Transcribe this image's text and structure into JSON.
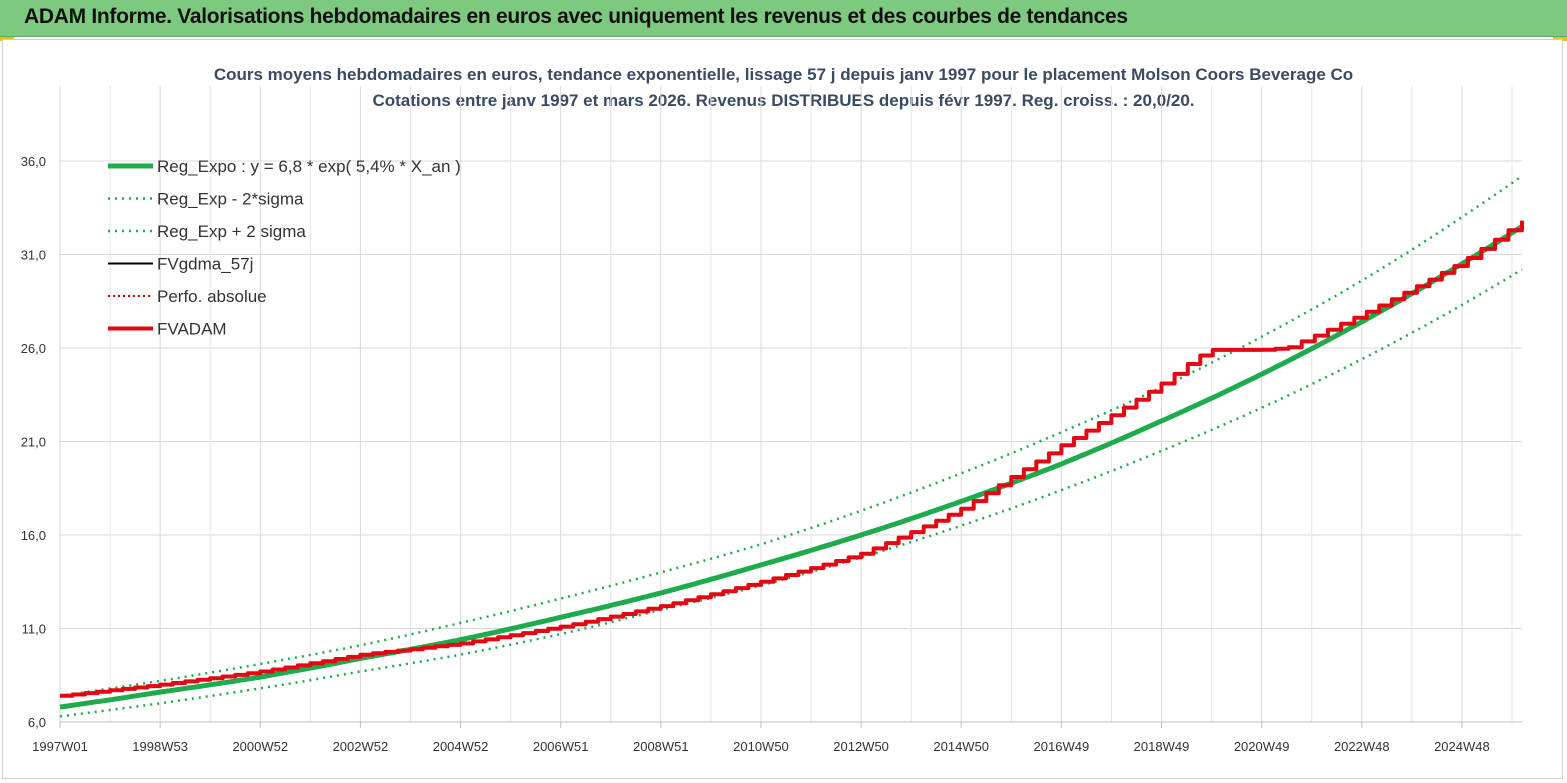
{
  "header": {
    "title": "ADAM Informe. Valorisations hebdomadaires en euros avec uniquement les revenus et des courbes de tendances"
  },
  "colors": {
    "header_bg": "#7dc97f",
    "reg_expo": "#1faa4b",
    "sigma": "#1faa4b",
    "fvgdma": "#000000",
    "perfo": "#cc0000",
    "fvadam": "#e30613"
  },
  "chart_data": {
    "type": "line",
    "title": "Cours moyens hebdomadaires en euros, tendance exponentielle, lissage 57 j depuis janv 1997  pour le placement Molson Coors Beverage Co",
    "subtitle": "Cotations entre janv 1997 et mars 2026. Revenus DISTRIBUES depuis févr 1997. Reg. croiss. : 20,0/20.",
    "ylim": [
      6.0,
      36.0
    ],
    "yticks": [
      "6,0",
      "11,0",
      "16,0",
      "21,0",
      "26,0",
      "31,0",
      "36,0"
    ],
    "yticks_values": [
      6,
      11,
      16,
      21,
      26,
      31,
      36
    ],
    "xlim": [
      1997.0,
      2026.2
    ],
    "xticks": [
      "1997W01",
      "1998W53",
      "2000W52",
      "2002W52",
      "2004W52",
      "2006W51",
      "2008W51",
      "2010W50",
      "2012W50",
      "2014W50",
      "2016W49",
      "2018W49",
      "2020W49",
      "2022W48",
      "2024W48"
    ],
    "xticks_values": [
      1997.0,
      1999.0,
      2001.0,
      2003.0,
      2005.0,
      2007.0,
      2009.0,
      2011.0,
      2013.0,
      2015.0,
      2017.0,
      2019.0,
      2021.0,
      2023.0,
      2025.0
    ],
    "grid": true,
    "legend_position": "top-left",
    "series": [
      {
        "name": "Reg_Expo : y = 6,8 * exp( 5,4% *  X_an )",
        "style": "solid-thick",
        "x": [
          1997.0,
          1999.0,
          2001.0,
          2003.0,
          2005.0,
          2007.0,
          2009.0,
          2011.0,
          2013.0,
          2015.0,
          2017.0,
          2019.0,
          2021.0,
          2023.0,
          2025.0,
          2026.2
        ],
        "values": [
          6.8,
          7.6,
          8.4,
          9.4,
          10.4,
          11.6,
          12.9,
          14.4,
          16.0,
          17.8,
          19.8,
          22.1,
          24.6,
          27.4,
          30.5,
          32.5
        ]
      },
      {
        "name": "Reg_Exp - 2*sigma",
        "style": "dotted",
        "x": [
          1997.0,
          1999.0,
          2001.0,
          2003.0,
          2005.0,
          2007.0,
          2009.0,
          2011.0,
          2013.0,
          2015.0,
          2017.0,
          2019.0,
          2021.0,
          2023.0,
          2025.0,
          2026.2
        ],
        "values": [
          6.3,
          7.0,
          7.8,
          8.7,
          9.6,
          10.7,
          12.0,
          13.3,
          14.8,
          16.5,
          18.4,
          20.5,
          22.8,
          25.4,
          28.3,
          30.2
        ]
      },
      {
        "name": "Reg_Exp + 2 sigma",
        "style": "dotted",
        "x": [
          1997.0,
          1999.0,
          2001.0,
          2003.0,
          2005.0,
          2007.0,
          2009.0,
          2011.0,
          2013.0,
          2015.0,
          2017.0,
          2019.0,
          2021.0,
          2023.0,
          2025.0,
          2026.2
        ],
        "values": [
          7.4,
          8.2,
          9.1,
          10.1,
          11.3,
          12.6,
          14.0,
          15.5,
          17.3,
          19.3,
          21.5,
          23.9,
          26.6,
          29.6,
          33.0,
          35.2
        ]
      },
      {
        "name": "FVgdma_57j",
        "style": "solid",
        "x": [
          1997.0,
          1999.0,
          2001.0,
          2003.0,
          2005.0,
          2007.0,
          2009.0,
          2011.0,
          2013.0,
          2015.0,
          2016.0,
          2017.0,
          2018.0,
          2019.0,
          2019.7,
          2020.0,
          2021.0,
          2021.5,
          2023.0,
          2025.0,
          2026.2
        ],
        "values": [
          7.4,
          8.0,
          8.7,
          9.6,
          10.2,
          11.1,
          12.2,
          13.5,
          15.0,
          17.4,
          19.1,
          20.8,
          22.4,
          24.1,
          25.5,
          25.9,
          25.9,
          26.0,
          27.8,
          30.6,
          32.8
        ]
      },
      {
        "name": "Perfo. absolue",
        "style": "dotted",
        "x": [
          1997.0,
          1999.0,
          2001.0,
          2003.0,
          2005.0,
          2007.0,
          2009.0,
          2011.0,
          2013.0,
          2015.0,
          2016.0,
          2017.0,
          2018.0,
          2019.0,
          2019.7,
          2020.0,
          2021.0,
          2021.5,
          2023.0,
          2025.0,
          2026.2
        ],
        "values": [
          7.4,
          8.0,
          8.7,
          9.6,
          10.2,
          11.1,
          12.2,
          13.5,
          15.0,
          17.4,
          19.1,
          20.8,
          22.4,
          24.1,
          25.5,
          25.9,
          25.9,
          26.0,
          27.8,
          30.6,
          32.8
        ]
      },
      {
        "name": "FVADAM",
        "style": "solid-thick",
        "x": [
          1997.0,
          1999.0,
          2001.0,
          2003.0,
          2005.0,
          2007.0,
          2009.0,
          2011.0,
          2013.0,
          2015.0,
          2016.0,
          2017.0,
          2018.0,
          2019.0,
          2019.7,
          2020.0,
          2021.0,
          2021.5,
          2023.0,
          2025.0,
          2026.2
        ],
        "values": [
          7.4,
          8.0,
          8.7,
          9.6,
          10.2,
          11.1,
          12.2,
          13.5,
          15.0,
          17.4,
          19.1,
          20.8,
          22.4,
          24.1,
          25.5,
          25.9,
          25.9,
          26.0,
          27.8,
          30.6,
          32.8
        ]
      }
    ]
  }
}
